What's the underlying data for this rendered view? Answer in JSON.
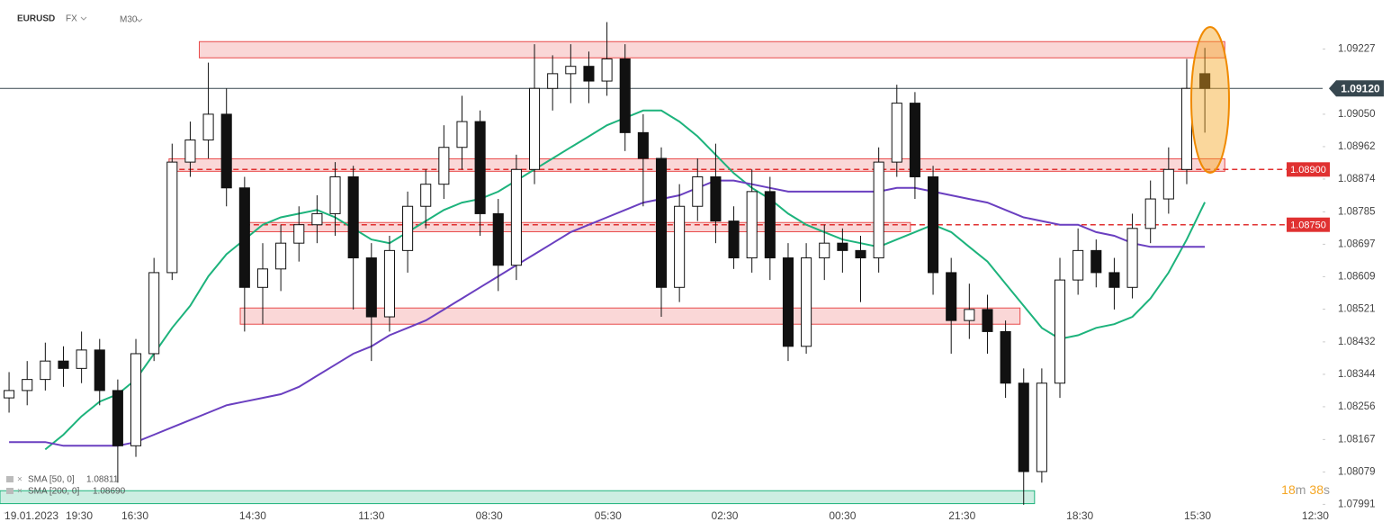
{
  "chart_data": {
    "type": "candlestick",
    "symbol": "EURUSD",
    "market": "FX",
    "timeframe": "M30",
    "xlim": [
      0,
      73
    ],
    "ylim": [
      1.0797,
      1.0936
    ],
    "xticks": [
      {
        "value": 0.25,
        "label": "19.01.2023"
      },
      {
        "value": 4.37,
        "label": "19:30"
      },
      {
        "value": 7.45,
        "label": "16:30"
      },
      {
        "value": 13.95,
        "label": "14:30"
      },
      {
        "value": 20.5,
        "label": "11:30"
      },
      {
        "value": 27.0,
        "label": "08:30"
      },
      {
        "value": 33.56,
        "label": "05:30"
      },
      {
        "value": 40.0,
        "label": "02:30"
      },
      {
        "value": 46.5,
        "label": "00:30"
      },
      {
        "value": 53.1,
        "label": "21:30"
      },
      {
        "value": 59.6,
        "label": "18:30"
      },
      {
        "value": 66.1,
        "label": "15:30"
      },
      {
        "value": 72.6,
        "label": "12:30"
      }
    ],
    "yticks": [
      1.09227,
      {
        "value": 1.0905,
        "label": "1.09050"
      },
      1.08962,
      1.08874,
      1.08785,
      1.08697,
      1.08609,
      1.08521,
      1.08432,
      1.08344,
      1.08256,
      1.08167,
      1.08079,
      1.07991
    ],
    "up_color": "#ffffff",
    "down_color": "#111111",
    "open": [
      1.0828,
      1.083,
      1.0833,
      1.0838,
      1.0836,
      1.0841,
      1.083,
      1.0815,
      1.084,
      1.0862,
      1.0892,
      1.0898,
      1.0905,
      1.0885,
      1.0858,
      1.0863,
      1.087,
      1.0875,
      1.0878,
      1.0888,
      1.0866,
      1.085,
      1.0868,
      1.088,
      1.0886,
      1.0896,
      1.0903,
      1.0878,
      1.0864,
      1.089,
      1.0912,
      1.0916,
      1.0918,
      1.0914,
      1.092,
      1.09,
      1.0893,
      1.0858,
      1.088,
      1.0888,
      1.0876,
      1.0866,
      1.0884,
      1.0866,
      1.0842,
      1.0866,
      1.087,
      1.0868,
      1.0866,
      1.0892,
      1.0908,
      1.0888,
      1.0862,
      1.0849,
      1.0852,
      1.0846,
      1.0832,
      1.0808,
      1.0832,
      1.086,
      1.0868,
      1.0862,
      1.0858,
      1.0874,
      1.0882,
      1.089,
      1.0916
    ],
    "high": [
      1.0835,
      1.0838,
      1.0843,
      1.0842,
      1.0846,
      1.0844,
      1.0833,
      1.0844,
      1.0866,
      1.0897,
      1.0903,
      1.0919,
      1.0912,
      1.0888,
      1.087,
      1.0875,
      1.088,
      1.0883,
      1.0892,
      1.0891,
      1.087,
      1.0872,
      1.0884,
      1.089,
      1.0902,
      1.091,
      1.0906,
      1.0882,
      1.0894,
      1.0924,
      1.0921,
      1.0924,
      1.0922,
      1.093,
      1.0924,
      1.0905,
      1.0896,
      1.0886,
      1.0893,
      1.0897,
      1.088,
      1.089,
      1.0888,
      1.087,
      1.087,
      1.0875,
      1.0874,
      1.0872,
      1.0896,
      1.0913,
      1.0911,
      1.0891,
      1.0866,
      1.0859,
      1.0856,
      1.0849,
      1.0836,
      1.0836,
      1.0866,
      1.0874,
      1.0871,
      1.0866,
      1.0878,
      1.0887,
      1.0896,
      1.092,
      1.0923
    ],
    "low": [
      1.0824,
      1.0826,
      1.083,
      1.0831,
      1.0832,
      1.0826,
      1.0805,
      1.0812,
      1.0838,
      1.086,
      1.0888,
      1.0893,
      1.088,
      1.0846,
      1.0848,
      1.0857,
      1.0865,
      1.087,
      1.0872,
      1.0852,
      1.0838,
      1.0846,
      1.0862,
      1.0874,
      1.0882,
      1.089,
      1.0872,
      1.0857,
      1.086,
      1.0886,
      1.0906,
      1.0908,
      1.0908,
      1.091,
      1.0895,
      1.088,
      1.085,
      1.0854,
      1.0876,
      1.087,
      1.0863,
      1.0862,
      1.086,
      1.0838,
      1.084,
      1.086,
      1.0862,
      1.0854,
      1.0862,
      1.0888,
      1.0882,
      1.0856,
      1.084,
      1.0844,
      1.084,
      1.0828,
      1.0799,
      1.0805,
      1.0828,
      1.0856,
      1.0858,
      1.0852,
      1.0855,
      1.087,
      1.0878,
      1.0886,
      1.09
    ],
    "close": [
      1.083,
      1.0833,
      1.0838,
      1.0836,
      1.0841,
      1.083,
      1.0815,
      1.084,
      1.0862,
      1.0892,
      1.0898,
      1.0905,
      1.0885,
      1.0858,
      1.0863,
      1.087,
      1.0875,
      1.0878,
      1.0888,
      1.0866,
      1.085,
      1.0868,
      1.088,
      1.0886,
      1.0896,
      1.0903,
      1.0878,
      1.0864,
      1.089,
      1.0912,
      1.0916,
      1.0918,
      1.0914,
      1.092,
      1.09,
      1.0893,
      1.0858,
      1.088,
      1.0888,
      1.0876,
      1.0866,
      1.0884,
      1.0866,
      1.0842,
      1.0866,
      1.087,
      1.0868,
      1.0866,
      1.0892,
      1.0908,
      1.0888,
      1.0862,
      1.0849,
      1.0852,
      1.0846,
      1.0832,
      1.0808,
      1.0832,
      1.086,
      1.0868,
      1.0862,
      1.0858,
      1.0874,
      1.0882,
      1.089,
      1.0912,
      1.0912
    ],
    "series": [
      {
        "name": "SMA [50, 0]",
        "legend_value": "1.08811",
        "color": "#1db37c",
        "values": [
          null,
          null,
          1.0814,
          1.0818,
          1.0823,
          1.0827,
          1.0829,
          1.0833,
          1.084,
          1.0847,
          1.0853,
          1.0861,
          1.0867,
          1.0871,
          1.0875,
          1.0877,
          1.0878,
          1.0879,
          1.0877,
          1.0874,
          1.0871,
          1.087,
          1.0873,
          1.0876,
          1.0879,
          1.0881,
          1.0882,
          1.0884,
          1.0887,
          1.089,
          1.0893,
          1.0896,
          1.0899,
          1.0902,
          1.0904,
          1.0906,
          1.0906,
          1.0903,
          1.0899,
          1.0894,
          1.0889,
          1.0885,
          1.0882,
          1.0878,
          1.0875,
          1.0873,
          1.0871,
          1.087,
          1.0869,
          1.0871,
          1.0873,
          1.0875,
          1.0873,
          1.0869,
          1.0865,
          1.0859,
          1.0853,
          1.0847,
          1.0844,
          1.0845,
          1.0847,
          1.0848,
          1.085,
          1.0855,
          1.0862,
          1.0871,
          1.08811
        ]
      },
      {
        "name": "SMA [200, 0]",
        "legend_value": "1.08690",
        "color": "#6a3fc0",
        "values": [
          1.0816,
          1.0816,
          1.0816,
          1.0815,
          1.0815,
          1.0815,
          1.0815,
          1.0816,
          1.0818,
          1.082,
          1.0822,
          1.0824,
          1.0826,
          1.0827,
          1.0828,
          1.0829,
          1.0831,
          1.0834,
          1.0837,
          1.084,
          1.0842,
          1.0845,
          1.0847,
          1.0849,
          1.0852,
          1.0855,
          1.0858,
          1.0861,
          1.0864,
          1.0867,
          1.087,
          1.0873,
          1.0875,
          1.0877,
          1.0879,
          1.0881,
          1.0882,
          1.0883,
          1.0885,
          1.0887,
          1.0887,
          1.0886,
          1.0885,
          1.0884,
          1.0884,
          1.0884,
          1.0884,
          1.0884,
          1.0884,
          1.0885,
          1.0885,
          1.0884,
          1.0883,
          1.0882,
          1.0881,
          1.0879,
          1.0877,
          1.0876,
          1.0875,
          1.0875,
          1.0873,
          1.0872,
          1.087,
          1.0869,
          1.0869,
          1.0869,
          1.0869
        ]
      }
    ],
    "zones": [
      {
        "from": 11.0,
        "to": 67.6,
        "low": 1.09203,
        "high": 1.09247,
        "color": "#e84a4a"
      },
      {
        "from": 9.33,
        "to": 67.6,
        "low": 1.08895,
        "high": 1.08929,
        "color": "#e84a4a"
      },
      {
        "from": 13.5,
        "to": 50.25,
        "low": 1.08731,
        "high": 1.08756,
        "color": "#e84a4a"
      },
      {
        "from": 13.26,
        "to": 56.3,
        "low": 1.0848,
        "high": 1.08524,
        "color": "#e84a4a"
      },
      {
        "from": 0,
        "to": 57.1,
        "low": 1.07993,
        "high": 1.08028,
        "color": "#1db37c"
      }
    ],
    "levels": [
      {
        "value": 1.089,
        "label": "1.08900",
        "from": 9.4,
        "color": "#e03131"
      },
      {
        "value": 1.0875,
        "label": "1.08750",
        "from": 13.5,
        "color": "#e03131"
      }
    ],
    "last_price": {
      "value": 1.0912,
      "label": "1.09120"
    },
    "timer": [
      "18",
      "m",
      "38",
      "s"
    ]
  }
}
